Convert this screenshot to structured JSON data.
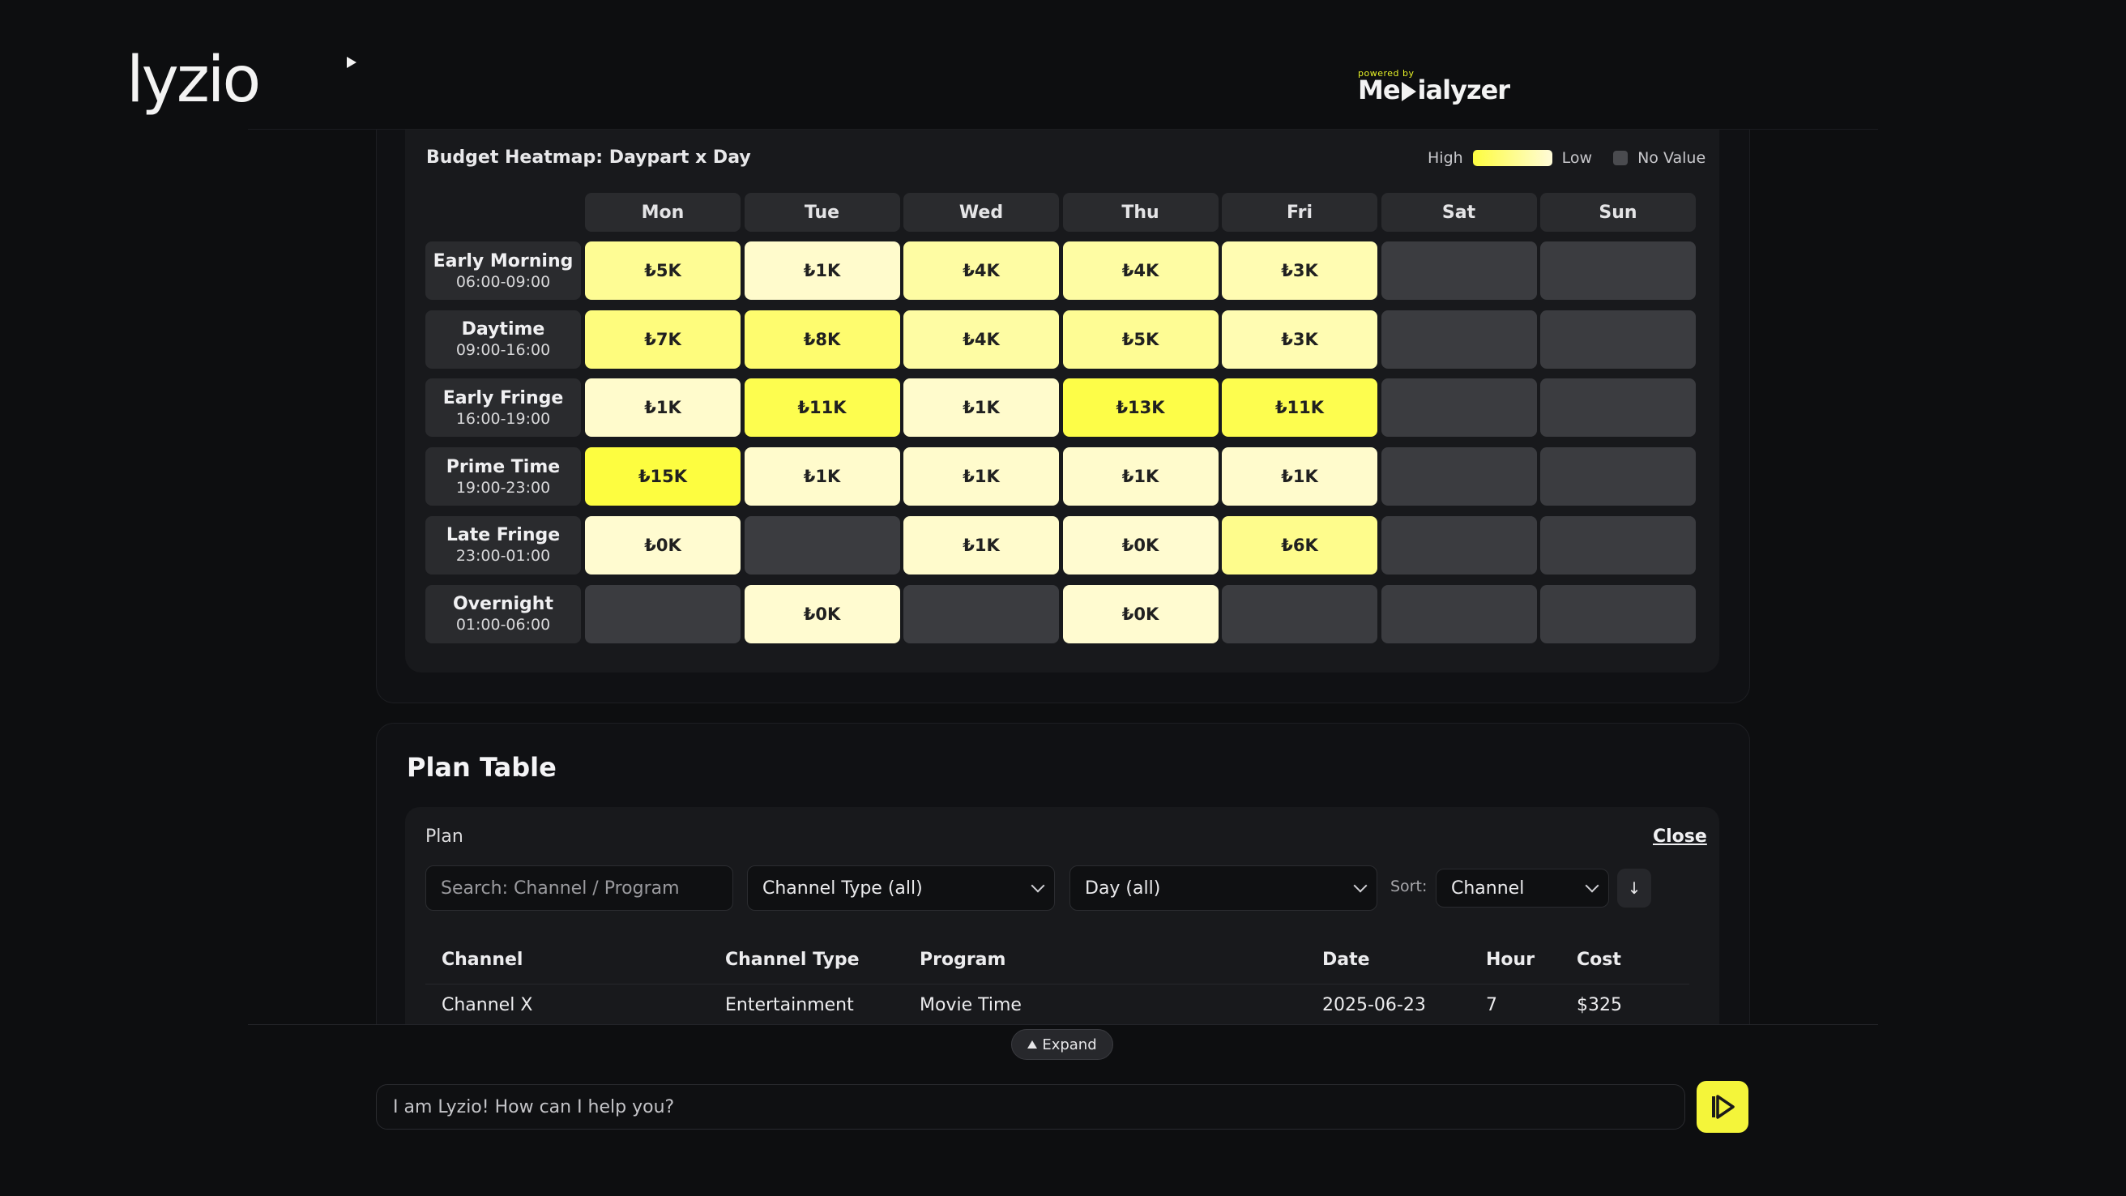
{
  "header": {
    "logo_text": "lyzio",
    "powered_by": "powered by",
    "brand_text_left": "Me",
    "brand_text_right": "ialyzer"
  },
  "heatmap": {
    "title": "Budget Heatmap: Daypart x Day",
    "legend": {
      "high": "High",
      "low": "Low",
      "no_value": "No Value"
    },
    "colors": {
      "high": "#fdfd40",
      "low": "#fffbd8",
      "empty": "#3b3c40"
    },
    "days": [
      "Mon",
      "Tue",
      "Wed",
      "Thu",
      "Fri",
      "Sat",
      "Sun"
    ],
    "dayparts": [
      {
        "name": "Early Morning",
        "time": "06:00-09:00"
      },
      {
        "name": "Daytime",
        "time": "09:00-16:00"
      },
      {
        "name": "Early Fringe",
        "time": "16:00-19:00"
      },
      {
        "name": "Prime Time",
        "time": "19:00-23:00"
      },
      {
        "name": "Late Fringe",
        "time": "23:00-01:00"
      },
      {
        "name": "Overnight",
        "time": "01:00-06:00"
      }
    ],
    "cells": [
      [
        "₺5K",
        "₺1K",
        "₺4K",
        "₺4K",
        "₺3K",
        null,
        null
      ],
      [
        "₺7K",
        "₺8K",
        "₺4K",
        "₺5K",
        "₺3K",
        null,
        null
      ],
      [
        "₺1K",
        "₺11K",
        "₺1K",
        "₺13K",
        "₺11K",
        null,
        null
      ],
      [
        "₺15K",
        "₺1K",
        "₺1K",
        "₺1K",
        "₺1K",
        null,
        null
      ],
      [
        "₺0K",
        null,
        "₺1K",
        "₺0K",
        "₺6K",
        null,
        null
      ],
      [
        null,
        "₺0K",
        null,
        "₺0K",
        null,
        null,
        null
      ]
    ],
    "intensity": [
      [
        0.45,
        0.08,
        0.35,
        0.35,
        0.25,
        null,
        null
      ],
      [
        0.6,
        0.7,
        0.35,
        0.45,
        0.25,
        null,
        null
      ],
      [
        0.08,
        0.9,
        0.08,
        0.95,
        0.9,
        null,
        null
      ],
      [
        1.0,
        0.08,
        0.08,
        0.08,
        0.08,
        null,
        null
      ],
      [
        0.05,
        null,
        0.08,
        0.05,
        0.5,
        null,
        null
      ],
      [
        null,
        0.05,
        null,
        0.05,
        null,
        null,
        null
      ]
    ]
  },
  "plan": {
    "title": "Plan Table",
    "label": "Plan",
    "close_label": "Close",
    "search_placeholder": "Search: Channel / Program",
    "channel_type_filter": "Channel Type (all)",
    "day_filter": "Day (all)",
    "sort_label": "Sort:",
    "sort_value": "Channel",
    "sort_direction_icon": "↓",
    "columns": [
      "Channel",
      "Channel Type",
      "Program",
      "Date",
      "Hour",
      "Cost"
    ],
    "rows": [
      [
        "Channel X",
        "Entertainment",
        "Movie Time",
        "2025-06-23",
        "7",
        "$325"
      ]
    ]
  },
  "footer": {
    "expand_label": "Expand",
    "chat_placeholder": "I am Lyzio! How can I help you?"
  }
}
